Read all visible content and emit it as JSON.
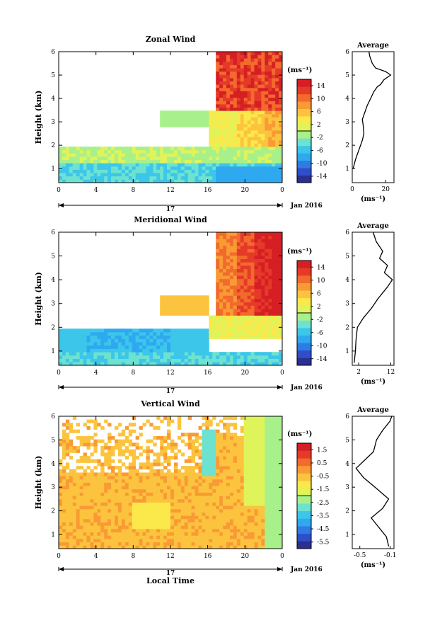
{
  "panels": [
    {
      "title": "Zonal Wind",
      "ylabel": "Height (km)",
      "x_ticks": [
        "0",
        "4",
        "8",
        "12",
        "16",
        "20",
        "0"
      ],
      "y_ticks": [
        "1",
        "2",
        "3",
        "4",
        "5",
        "6"
      ],
      "day_label": "17",
      "date_label": "Jan 2016",
      "colorbar_unit": "(ms⁻¹)",
      "colorbar_ticks": [
        "14",
        "10",
        "6",
        "2",
        "-2",
        "-6",
        "-10",
        "-14"
      ],
      "avg_title": "Average",
      "avg_xlabel": "(ms⁻¹)",
      "avg_x_ticks": [
        "0",
        "20"
      ],
      "avg_y_ticks": [
        "1",
        "2",
        "3",
        "4",
        "5",
        "6"
      ]
    },
    {
      "title": "Meridional Wind",
      "ylabel": "Height (km)",
      "x_ticks": [
        "0",
        "4",
        "8",
        "12",
        "16",
        "20",
        "0"
      ],
      "y_ticks": [
        "1",
        "2",
        "3",
        "4",
        "5",
        "6"
      ],
      "day_label": "17",
      "date_label": "Jan 2016",
      "colorbar_unit": "(ms⁻¹)",
      "colorbar_ticks": [
        "14",
        "10",
        "6",
        "2",
        "-2",
        "-6",
        "-10",
        "-14"
      ],
      "avg_title": "Average",
      "avg_xlabel": "(ms⁻¹)",
      "avg_x_ticks": [
        "2",
        "12"
      ],
      "avg_y_ticks": [
        "1",
        "2",
        "3",
        "4",
        "5",
        "6"
      ]
    },
    {
      "title": "Vertical Wind",
      "ylabel": "Height (km)",
      "xlabel": "Local Time",
      "x_ticks": [
        "0",
        "4",
        "8",
        "12",
        "16",
        "20",
        "0"
      ],
      "y_ticks": [
        "1",
        "2",
        "3",
        "4",
        "5",
        "6"
      ],
      "day_label": "17",
      "date_label": "Jan 2016",
      "colorbar_unit": "(ms⁻¹)",
      "colorbar_ticks": [
        "1.5",
        "0.5",
        "-0.5",
        "-1.5",
        "-2.5",
        "-3.5",
        "-4.5",
        "-5.5"
      ],
      "avg_title": "Average",
      "avg_xlabel": "(ms⁻¹)",
      "avg_x_ticks": [
        "-0.5",
        "-0.1"
      ],
      "avg_y_ticks": [
        "1",
        "2",
        "3",
        "4",
        "5",
        "6"
      ]
    }
  ],
  "colormap": [
    "#2b2f8f",
    "#2f4fc8",
    "#2f7be6",
    "#2ea9f0",
    "#3cc6ea",
    "#6ee2d0",
    "#a8f08a",
    "#dff35a",
    "#fbe84a",
    "#fcc43e",
    "#f99a35",
    "#f26a2c",
    "#e63a28",
    "#d51f25"
  ],
  "chart_data": [
    {
      "type": "heatmap",
      "title": "Zonal Wind",
      "ylabel": "Height (km)",
      "xlim": [
        0,
        24
      ],
      "ylim": [
        0.4,
        6
      ],
      "clim": [
        -16,
        16
      ],
      "colorbar_unit": "(ms⁻¹)",
      "date": "17 Jan 2016",
      "average_profile": {
        "title": "Average",
        "xlabel": "(ms⁻¹)",
        "xlim": [
          0,
          25
        ],
        "points": [
          [
            0.5,
            1.0
          ],
          [
            2,
            1.4
          ],
          [
            4,
            1.8
          ],
          [
            6,
            2.2
          ],
          [
            7,
            2.5
          ],
          [
            6.5,
            2.9
          ],
          [
            6,
            3.1
          ],
          [
            7.5,
            3.4
          ],
          [
            9,
            3.7
          ],
          [
            11,
            4.0
          ],
          [
            13,
            4.3
          ],
          [
            15,
            4.5
          ],
          [
            17,
            4.6
          ],
          [
            19,
            4.8
          ],
          [
            23,
            5.0
          ],
          [
            20,
            5.15
          ],
          [
            14,
            5.3
          ],
          [
            12,
            5.5
          ],
          [
            10.5,
            5.8
          ],
          [
            10,
            6.0
          ]
        ]
      }
    },
    {
      "type": "heatmap",
      "title": "Meridional Wind",
      "ylabel": "Height (km)",
      "xlim": [
        0,
        24
      ],
      "ylim": [
        0.4,
        6
      ],
      "clim": [
        -16,
        16
      ],
      "colorbar_unit": "(ms⁻¹)",
      "date": "17 Jan 2016",
      "average_profile": {
        "title": "Average",
        "xlabel": "(ms⁻¹)",
        "xlim": [
          0,
          13
        ],
        "points": [
          [
            0.6,
            0.5
          ],
          [
            1.0,
            1.0
          ],
          [
            1.2,
            1.5
          ],
          [
            1.6,
            2.0
          ],
          [
            3.5,
            2.4
          ],
          [
            6,
            2.8
          ],
          [
            8,
            3.2
          ],
          [
            11,
            3.7
          ],
          [
            12.5,
            4.0
          ],
          [
            10,
            4.3
          ],
          [
            11,
            4.6
          ],
          [
            8.5,
            4.9
          ],
          [
            9.5,
            5.2
          ],
          [
            7.5,
            5.6
          ],
          [
            6.5,
            6.0
          ]
        ]
      }
    },
    {
      "type": "heatmap",
      "title": "Vertical Wind",
      "ylabel": "Height (km)",
      "xlabel": "Local Time",
      "xlim": [
        0,
        24
      ],
      "ylim": [
        0.4,
        6
      ],
      "clim": [
        -6,
        2
      ],
      "colorbar_unit": "(ms⁻¹)",
      "date": "17 Jan 2016",
      "average_profile": {
        "title": "Average",
        "xlabel": "(ms⁻¹)",
        "xlim": [
          -0.6,
          -0.05
        ],
        "points": [
          [
            -0.12,
            0.5
          ],
          [
            -0.15,
            0.9
          ],
          [
            -0.25,
            1.3
          ],
          [
            -0.35,
            1.7
          ],
          [
            -0.2,
            2.1
          ],
          [
            -0.12,
            2.5
          ],
          [
            -0.3,
            3.0
          ],
          [
            -0.45,
            3.4
          ],
          [
            -0.55,
            3.8
          ],
          [
            -0.45,
            4.1
          ],
          [
            -0.32,
            4.5
          ],
          [
            -0.28,
            5.0
          ],
          [
            -0.2,
            5.4
          ],
          [
            -0.1,
            5.8
          ],
          [
            -0.08,
            6.0
          ]
        ]
      }
    }
  ]
}
